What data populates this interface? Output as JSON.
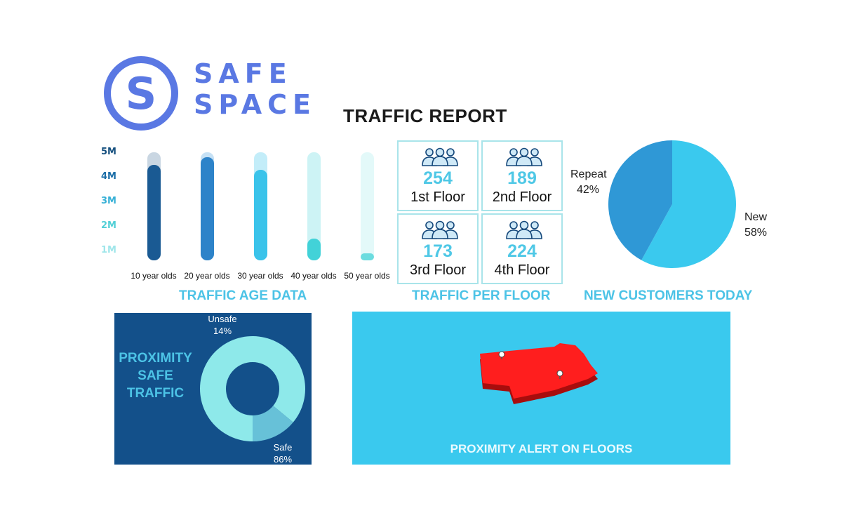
{
  "logo": {
    "line1": "SAFE",
    "line2": "SPACE",
    "monogram": "S"
  },
  "report_title": "TRAFFIC REPORT",
  "colors": {
    "brand_blue": "#5a78e3",
    "accent_cyan": "#4cc3e6",
    "navy": "#13508a",
    "alert_red": "#ff1e1e",
    "panel_cyan": "#3ac9ee"
  },
  "chart_data": [
    {
      "type": "bar",
      "title": "TRAFFIC AGE DATA",
      "categories": [
        "10 year olds",
        "20 year olds",
        "30 year olds",
        "40 year olds",
        "50 year olds"
      ],
      "values": [
        4.5,
        4.8,
        4.3,
        1.5,
        0.9
      ],
      "y_ticks": [
        "5M",
        "4M",
        "3M",
        "2M",
        "1M"
      ],
      "ylim": [
        0.6,
        5
      ],
      "track_max": 5,
      "fill_colors": [
        "#1a5a93",
        "#2d83c9",
        "#3ac3ea",
        "#42d2d8",
        "#6bdcdf"
      ],
      "track_colors": [
        "#c9d6e2",
        "#c6e1f5",
        "#c3edf9",
        "#cdf3f5",
        "#e3f9f9"
      ],
      "tick_colors": [
        "#16507f",
        "#1c6ea7",
        "#36b0d6",
        "#52cfd6",
        "#9fe6ea"
      ]
    },
    {
      "type": "table",
      "title": "TRAFFIC PER FLOOR",
      "icon": "people-group-icon",
      "cells": [
        {
          "count": "254",
          "floor": "1st Floor"
        },
        {
          "count": "189",
          "floor": "2nd Floor"
        },
        {
          "count": "173",
          "floor": "3rd Floor"
        },
        {
          "count": "224",
          "floor": "4th Floor"
        }
      ]
    },
    {
      "type": "pie",
      "title": "NEW CUSTOMERS TODAY",
      "slices": [
        {
          "name": "New",
          "value": 58,
          "label": "58%",
          "color": "#3ac9ee"
        },
        {
          "name": "Repeat",
          "value": 42,
          "label": "42%",
          "color": "#2f98d6"
        }
      ]
    },
    {
      "type": "pie",
      "subtype": "donut",
      "title": "PROXIMITY SAFE TRAFFIC",
      "title_lines": [
        "PROXIMITY",
        "SAFE",
        "TRAFFIC"
      ],
      "slices": [
        {
          "name": "Safe",
          "value": 86,
          "label": "86%",
          "color": "#8ee9ea"
        },
        {
          "name": "Unsafe",
          "value": 14,
          "label": "14%",
          "color": "#67c1d8"
        }
      ]
    }
  ],
  "alert": {
    "title": "PROXIMITY ALERT ON FLOORS",
    "map_icon": "floor-map-icon",
    "pin_icon": "map-pin-icon"
  }
}
